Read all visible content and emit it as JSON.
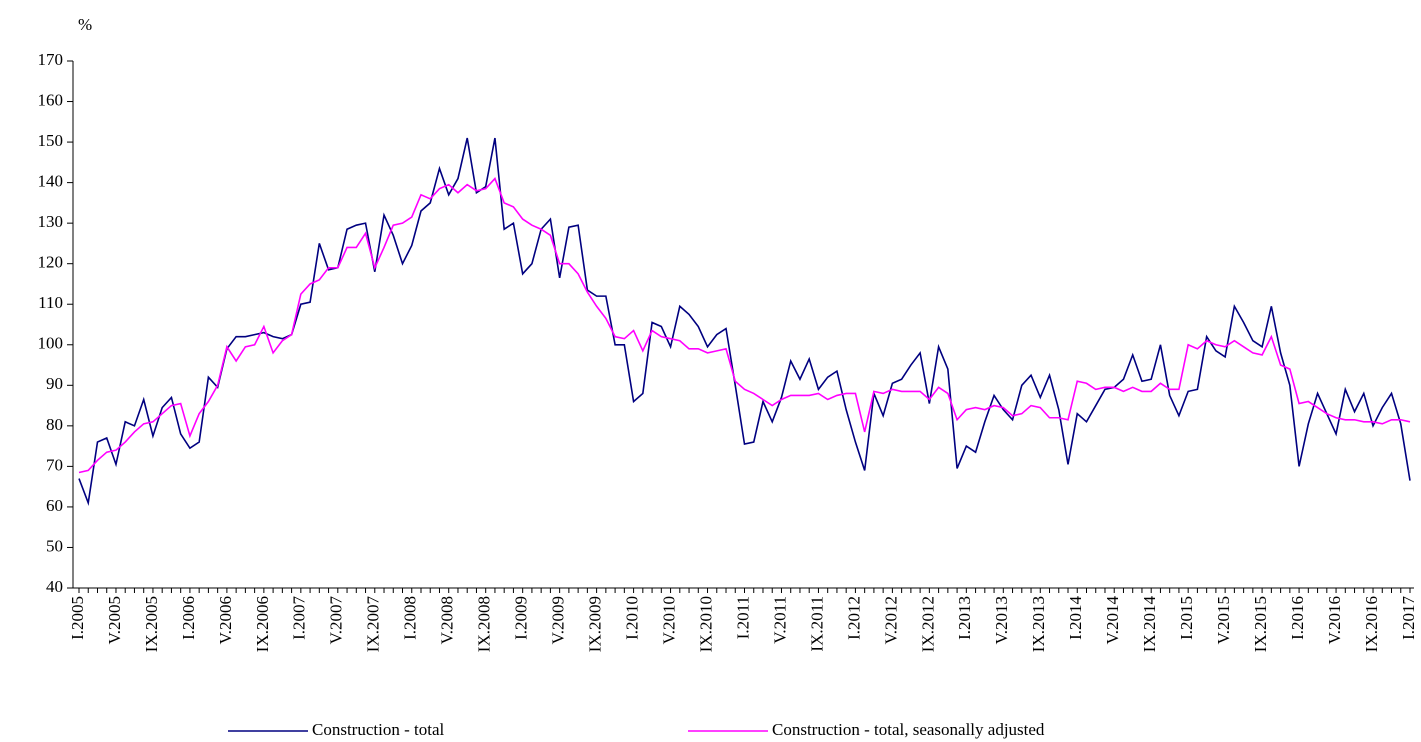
{
  "chart_data": {
    "type": "line",
    "y_unit": "%",
    "categories": [
      "I.2005",
      null,
      null,
      null,
      "V.2005",
      null,
      null,
      null,
      "IX.2005",
      null,
      null,
      null,
      "I.2006",
      null,
      null,
      null,
      "V.2006",
      null,
      null,
      null,
      "IX.2006",
      null,
      null,
      null,
      "I.2007",
      null,
      null,
      null,
      "V.2007",
      null,
      null,
      null,
      "IX.2007",
      null,
      null,
      null,
      "I.2008",
      null,
      null,
      null,
      "V.2008",
      null,
      null,
      null,
      "IX.2008",
      null,
      null,
      null,
      "I.2009",
      null,
      null,
      null,
      "V.2009",
      null,
      null,
      null,
      "IX.2009",
      null,
      null,
      null,
      "I.2010",
      null,
      null,
      null,
      "V.2010",
      null,
      null,
      null,
      "IX.2010",
      null,
      null,
      null,
      "I.2011",
      null,
      null,
      null,
      "V.2011",
      null,
      null,
      null,
      "IX.2011",
      null,
      null,
      null,
      "I.2012",
      null,
      null,
      null,
      "V.2012",
      null,
      null,
      null,
      "IX.2012",
      null,
      null,
      null,
      "I.2013",
      null,
      null,
      null,
      "V.2013",
      null,
      null,
      null,
      "IX.2013",
      null,
      null,
      null,
      "I.2014",
      null,
      null,
      null,
      "V.2014",
      null,
      null,
      null,
      "IX.2014",
      null,
      null,
      null,
      "I.2015",
      null,
      null,
      null,
      "V.2015",
      null,
      null,
      null,
      "IX.2015",
      null,
      null,
      null,
      "I.2016",
      null,
      null,
      null,
      "V.2016",
      null,
      null,
      null,
      "IX.2016",
      null,
      null,
      null,
      "I.2017"
    ],
    "series": [
      {
        "name": "Construction - total",
        "color": "#000080",
        "values": [
          67,
          61,
          76,
          77,
          70.5,
          81,
          80,
          86.5,
          77.5,
          84.5,
          87,
          78,
          74.5,
          76,
          92,
          89.5,
          99,
          102,
          102,
          102.5,
          103,
          102,
          101.5,
          102.5,
          110,
          110.5,
          125,
          118.5,
          119,
          128.5,
          129.5,
          130,
          118,
          132,
          127,
          120,
          124.5,
          133,
          135,
          143.5,
          137,
          141,
          151,
          137.5,
          139,
          151,
          128.5,
          130,
          117.5,
          120,
          128.5,
          131,
          116.5,
          129,
          129.5,
          113.5,
          112,
          112,
          100,
          100,
          86,
          88,
          105.5,
          104.5,
          99.5,
          109.5,
          107.5,
          104.5,
          99.5,
          102.5,
          104,
          90,
          75.5,
          76,
          86,
          81,
          87,
          96,
          91.5,
          96.5,
          89,
          92,
          93.5,
          84,
          76,
          69,
          88,
          82.5,
          90.5,
          91.5,
          95,
          98,
          85.5,
          99.5,
          94,
          69.5,
          75,
          73.5,
          81,
          87.5,
          84,
          81.5,
          90,
          92.5,
          87,
          92.5,
          84,
          70.5,
          83,
          81,
          85,
          89,
          89.5,
          91.5,
          97.5,
          91,
          91.5,
          100,
          87.5,
          82.5,
          88.5,
          89,
          102,
          98.5,
          97,
          109.5,
          105.5,
          101,
          99.5,
          109.5,
          98,
          90,
          70,
          80.5,
          88,
          83,
          78,
          89,
          83.5,
          88,
          80,
          84.5,
          88,
          80.5,
          66.5
        ]
      },
      {
        "name": "Construction - total, seasonally adjusted",
        "color": "#ff00ff",
        "values": [
          68.5,
          69,
          71.5,
          73.5,
          74,
          76,
          78.5,
          80.5,
          81,
          83,
          85,
          85.5,
          77.5,
          83,
          86,
          90,
          99.5,
          96,
          99.5,
          100,
          104.5,
          98,
          101,
          102.5,
          112.5,
          115,
          116,
          119,
          119,
          124,
          124,
          127.5,
          119,
          124,
          129.5,
          130,
          131.5,
          137,
          136,
          138.5,
          139.5,
          137.5,
          139.5,
          138,
          138.5,
          141,
          135,
          134,
          131,
          129.5,
          128.5,
          127,
          120,
          120,
          117.5,
          113,
          109.5,
          106.5,
          102,
          101.5,
          103.5,
          98.5,
          103.5,
          102,
          101.5,
          101,
          99,
          99,
          98,
          98.5,
          99,
          91,
          89,
          88,
          86.5,
          85,
          86.5,
          87.5,
          87.5,
          87.5,
          88,
          86.5,
          87.5,
          88,
          88,
          78.5,
          88.5,
          88,
          89,
          88.5,
          88.5,
          88.5,
          86.5,
          89.5,
          88,
          81.5,
          84,
          84.5,
          84,
          85,
          84.5,
          82.5,
          83,
          85,
          84.5,
          82,
          82,
          81.5,
          91,
          90.5,
          89,
          89.5,
          89.5,
          88.5,
          89.5,
          88.5,
          88.5,
          90.5,
          89,
          89,
          100,
          99,
          101,
          100,
          99.5,
          101,
          99.5,
          98,
          97.5,
          102,
          95,
          94,
          85.5,
          86,
          84.5,
          83,
          82,
          81.5,
          81.5,
          81,
          81,
          80.5,
          81.5,
          81.5,
          81
        ]
      }
    ],
    "ylim": [
      40,
      170
    ],
    "yticks": [
      40,
      50,
      60,
      70,
      80,
      90,
      100,
      110,
      120,
      130,
      140,
      150,
      160,
      170
    ],
    "grid": false,
    "legend": "bottom"
  }
}
